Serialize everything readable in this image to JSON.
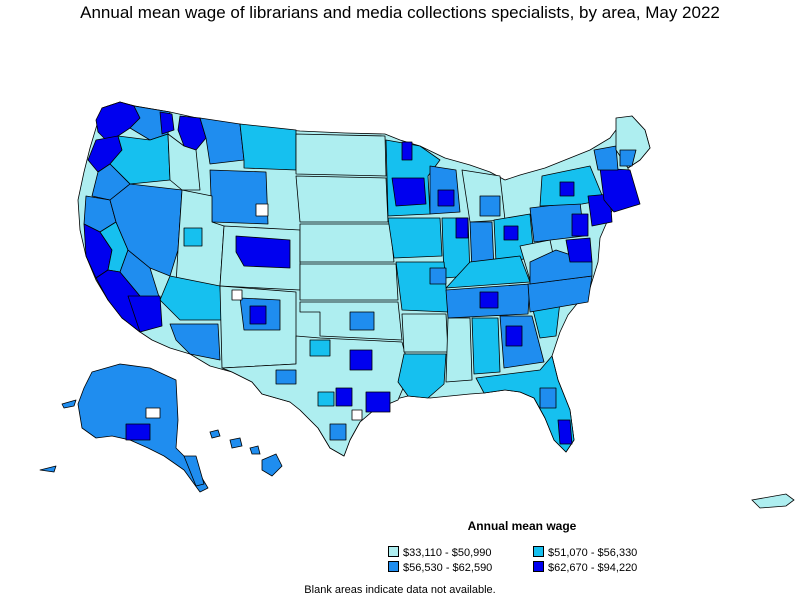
{
  "title": "Annual mean wage of librarians and media collections specialists, by area, May 2022",
  "legend": {
    "title": "Annual mean wage",
    "items": [
      {
        "label": "$33,110 - $50,990",
        "color": "#aeeef0"
      },
      {
        "label": "$51,070 - $56,330",
        "color": "#16c0ef"
      },
      {
        "label": "$56,530 - $62,590",
        "color": "#1f8def"
      },
      {
        "label": "$62,670 - $94,220",
        "color": "#0000ef"
      }
    ]
  },
  "note": "Blank areas indicate data not available.",
  "colors": {
    "border": "#000000",
    "background": "#ffffff"
  }
}
